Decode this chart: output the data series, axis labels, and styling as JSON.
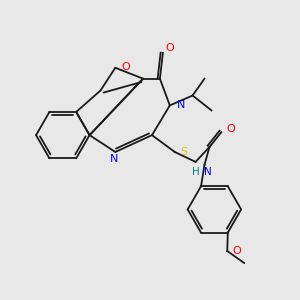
{
  "bg_color": "#e8e8e8",
  "bond_color": "#1a1a1a",
  "atom_colors": {
    "O": "#ff0000",
    "N": "#0000ff",
    "S": "#cccc00",
    "H": "#008080",
    "C": "#1a1a1a"
  },
  "figsize": [
    3.0,
    3.0
  ],
  "dpi": 100
}
